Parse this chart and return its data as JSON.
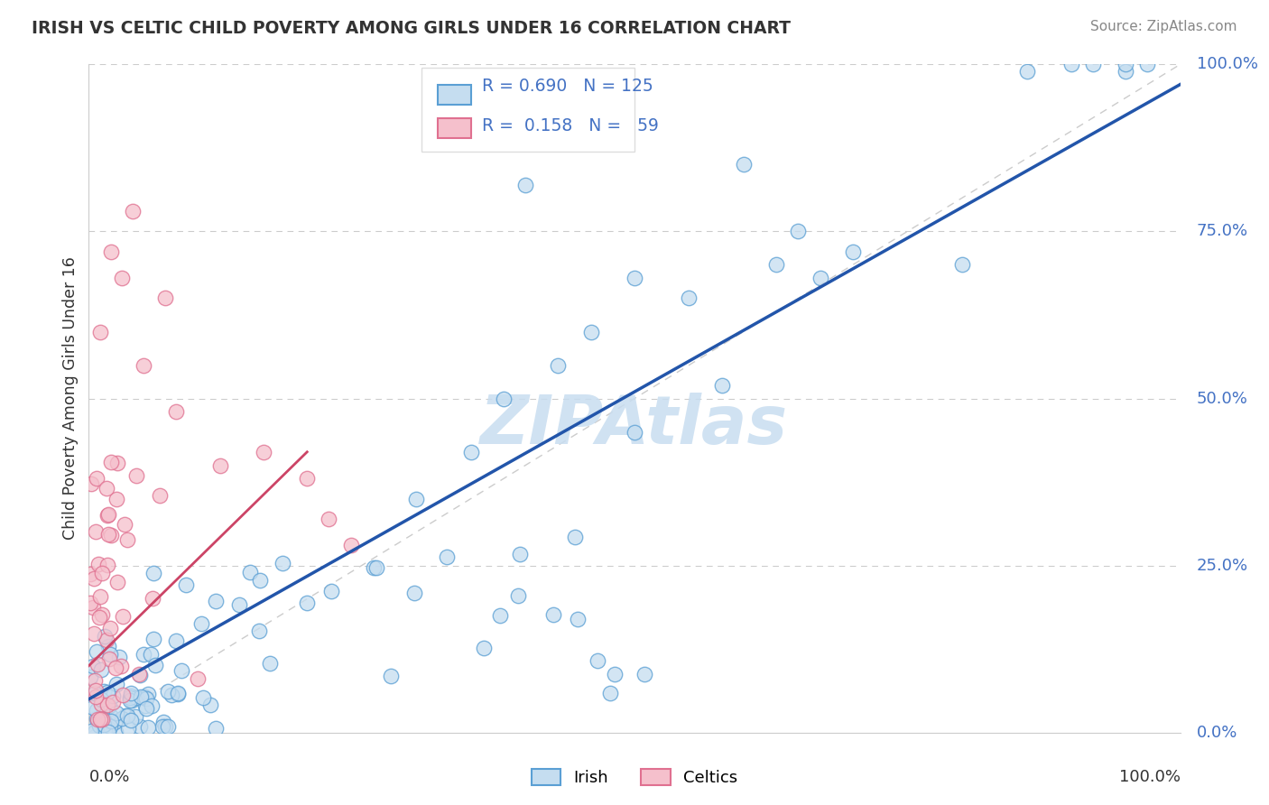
{
  "title": "IRISH VS CELTIC CHILD POVERTY AMONG GIRLS UNDER 16 CORRELATION CHART",
  "source": "Source: ZipAtlas.com",
  "ylabel": "Child Poverty Among Girls Under 16",
  "ytick_labels": [
    "0.0%",
    "25.0%",
    "50.0%",
    "75.0%",
    "100.0%"
  ],
  "ytick_values": [
    0.0,
    0.25,
    0.5,
    0.75,
    1.0
  ],
  "irish_R": 0.69,
  "irish_N": 125,
  "celtics_R": 0.158,
  "celtics_N": 59,
  "irish_fill_color": "#c5ddf0",
  "irish_edge_color": "#5a9fd4",
  "celtics_fill_color": "#f5c0cc",
  "celtics_edge_color": "#e07090",
  "irish_line_color": "#2255aa",
  "celtics_line_color": "#cc4466",
  "watermark_color": "#c8ddf0",
  "ref_line_color": "#cccccc",
  "background_color": "#ffffff",
  "axis_color": "#cccccc",
  "label_color": "#333333",
  "right_label_color": "#4472c4",
  "source_color": "#888888",
  "legend_edge_color": "#dddddd"
}
